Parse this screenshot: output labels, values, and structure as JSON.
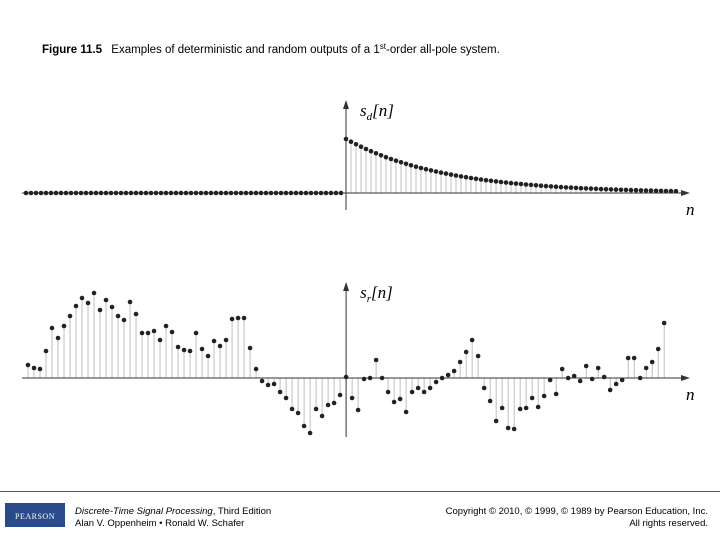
{
  "caption": {
    "figure": "Figure 11.5",
    "text": "Examples of deterministic and random outputs of a 1",
    "sup": "st",
    "tail": "-order all-pole system."
  },
  "chart_data": [
    {
      "type": "stem",
      "ylabel": [
        "s",
        "d",
        "[n]"
      ],
      "xlabel": "n",
      "xlim": [
        -64.8,
        68.8
      ],
      "ylim": [
        -1.7,
        9.3
      ],
      "x": [
        -64,
        -63,
        -62,
        -61,
        -60,
        -59,
        -58,
        -57,
        -56,
        -55,
        -54,
        -53,
        -52,
        -51,
        -50,
        -49,
        -48,
        -47,
        -46,
        -45,
        -44,
        -43,
        -42,
        -41,
        -40,
        -39,
        -38,
        -37,
        -36,
        -35,
        -34,
        -33,
        -32,
        -31,
        -30,
        -29,
        -28,
        -27,
        -26,
        -25,
        -24,
        -23,
        -22,
        -21,
        -20,
        -19,
        -18,
        -17,
        -16,
        -15,
        -14,
        -13,
        -12,
        -11,
        -10,
        -9,
        -8,
        -7,
        -6,
        -5,
        -4,
        -3,
        -2,
        -1,
        0,
        1,
        2,
        3,
        4,
        5,
        6,
        7,
        8,
        9,
        10,
        11,
        12,
        13,
        14,
        15,
        16,
        17,
        18,
        19,
        20,
        21,
        22,
        23,
        24,
        25,
        26,
        27,
        28,
        29,
        30,
        31,
        32,
        33,
        34,
        35,
        36,
        37,
        38,
        39,
        40,
        41,
        42,
        43,
        44,
        45,
        46,
        47,
        48,
        49,
        50,
        51,
        52,
        53,
        54,
        55,
        56,
        57,
        58,
        59,
        60,
        61,
        62,
        63,
        64,
        65,
        66
      ],
      "values": [
        0,
        0,
        0,
        0,
        0,
        0,
        0,
        0,
        0,
        0,
        0,
        0,
        0,
        0,
        0,
        0,
        0,
        0,
        0,
        0,
        0,
        0,
        0,
        0,
        0,
        0,
        0,
        0,
        0,
        0,
        0,
        0,
        0,
        0,
        0,
        0,
        0,
        0,
        0,
        0,
        0,
        0,
        0,
        0,
        0,
        0,
        0,
        0,
        0,
        0,
        0,
        0,
        0,
        0,
        0,
        0,
        0,
        0,
        0,
        0,
        0,
        0,
        0,
        0,
        5.4,
        5.13,
        4.87,
        4.63,
        4.4,
        4.18,
        3.97,
        3.77,
        3.58,
        3.4,
        3.23,
        3.07,
        2.92,
        2.77,
        2.63,
        2.5,
        2.38,
        2.26,
        2.15,
        2.04,
        1.94,
        1.84,
        1.75,
        1.66,
        1.58,
        1.5,
        1.42,
        1.35,
        1.28,
        1.22,
        1.16,
        1.1,
        1.05,
        0.99,
        0.94,
        0.9,
        0.85,
        0.81,
        0.77,
        0.73,
        0.69,
        0.66,
        0.63,
        0.59,
        0.56,
        0.54,
        0.51,
        0.48,
        0.46,
        0.44,
        0.42,
        0.39,
        0.37,
        0.36,
        0.34,
        0.32,
        0.31,
        0.29,
        0.28,
        0.26,
        0.25,
        0.24,
        0.22,
        0.21,
        0.2,
        0.19,
        0.18
      ],
      "color": "#222222",
      "stem_color": "#b0b0b0"
    },
    {
      "type": "stem",
      "ylabel": [
        "s",
        "r",
        "[n]"
      ],
      "xlabel": "n",
      "xlim": [
        -54,
        57.3
      ],
      "ylim": [
        -5.9,
        9.6
      ],
      "x": [
        -53,
        -52,
        -51,
        -50,
        -49,
        -48,
        -47,
        -46,
        -45,
        -44,
        -43,
        -42,
        -41,
        -40,
        -39,
        -38,
        -37,
        -36,
        -35,
        -34,
        -33,
        -32,
        -31,
        -30,
        -29,
        -28,
        -27,
        -26,
        -25,
        -24,
        -23,
        -22,
        -21,
        -20,
        -19,
        -18,
        -17,
        -16,
        -15,
        -14,
        -13,
        -12,
        -11,
        -10,
        -9,
        -8,
        -7,
        -6,
        -5,
        -4,
        -3,
        -2,
        -1,
        0,
        1,
        2,
        3,
        4,
        5,
        6,
        7,
        8,
        9,
        10,
        11,
        12,
        13,
        14,
        15,
        16,
        17,
        18,
        19,
        20,
        21,
        22,
        23,
        24,
        25,
        26,
        27,
        28,
        29,
        30,
        31,
        32,
        33,
        34,
        35,
        36,
        37,
        38,
        39,
        40,
        41,
        42,
        43,
        44,
        45,
        46,
        47,
        48,
        49,
        50,
        51,
        52,
        53
      ],
      "values": [
        1.3,
        1.0,
        0.9,
        2.7,
        5.0,
        4.0,
        5.2,
        6.2,
        7.2,
        8.0,
        7.5,
        8.5,
        6.8,
        7.8,
        7.1,
        6.2,
        5.8,
        7.6,
        6.4,
        4.5,
        4.5,
        4.7,
        3.8,
        5.2,
        4.6,
        3.1,
        2.8,
        2.7,
        4.5,
        2.9,
        2.2,
        3.7,
        3.2,
        3.8,
        5.9,
        6.0,
        6.0,
        3.0,
        0.9,
        -0.3,
        -0.7,
        -0.6,
        -1.4,
        -2.0,
        -3.1,
        -3.5,
        -4.8,
        -5.5,
        -3.1,
        -3.8,
        -2.7,
        -2.5,
        -1.7,
        0.1,
        -2.0,
        -3.2,
        -0.1,
        0.0,
        1.8,
        0.0,
        -1.4,
        -2.4,
        -2.1,
        -3.4,
        -1.4,
        -1.0,
        -1.4,
        -1.0,
        -0.4,
        0.0,
        0.3,
        0.7,
        1.6,
        2.6,
        3.8,
        2.2,
        -1.0,
        -2.3,
        -4.3,
        -3.0,
        -5.0,
        -5.1,
        -3.1,
        -3.0,
        -2.0,
        -2.9,
        -1.8,
        -0.2,
        -1.6,
        0.9,
        0.0,
        0.2,
        -0.3,
        1.2,
        -0.1,
        1.0,
        0.1,
        -1.2,
        -0.6,
        -0.2,
        2.0,
        2.0,
        0.0,
        1.0,
        1.6,
        2.9,
        5.5
      ],
      "color": "#222222",
      "stem_color": "#b0b0b0"
    }
  ],
  "footer": {
    "logo": "PEARSON",
    "book": "Discrete-Time Signal Processing",
    "edition": ", Third Edition",
    "authors": "Alan V. Oppenheim • Ronald W. Schafer",
    "copyright": "Copyright © 2010, © 1999, © 1989 by Pearson Education, Inc.",
    "rights": "All rights reserved."
  }
}
